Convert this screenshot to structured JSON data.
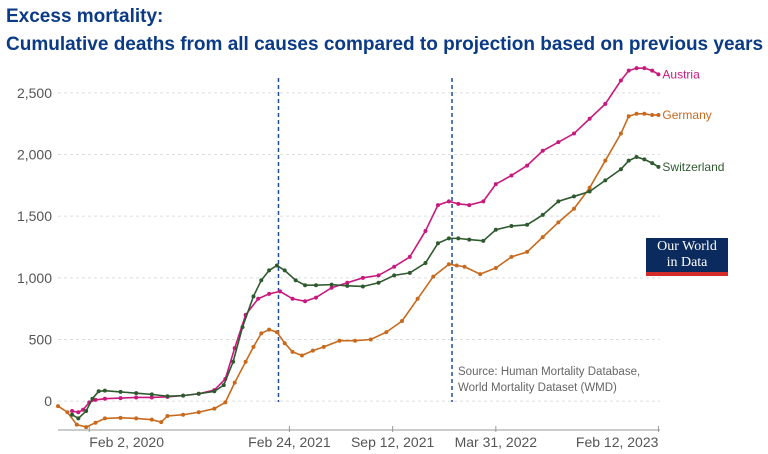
{
  "header": {
    "title": "Excess mortality:",
    "subtitle": "Cumulative deaths from all causes compared to projection based on previous years"
  },
  "source": {
    "line1": "Source: Human Mortality Database,",
    "line2": "World Mortality Dataset (WMD)"
  },
  "logo": {
    "line1": "Our World",
    "line2": "in Data"
  },
  "chart_data": {
    "type": "line",
    "title": "Excess mortality: Cumulative deaths from all causes compared to projection based on previous years",
    "xlabel": "",
    "ylabel": "",
    "x_ticks": [
      {
        "label": "Feb 2, 2020",
        "t": 2.0
      },
      {
        "label": "Feb 24, 2021",
        "t": 14.8
      },
      {
        "label": "Sep 12, 2021",
        "t": 21.4
      },
      {
        "label": "Mar 31, 2022",
        "t": 28.0
      },
      {
        "label": "Feb 12, 2023",
        "t": 38.4
      }
    ],
    "xlim": [
      0.0,
      38.5
    ],
    "ylim": [
      -250,
      2750
    ],
    "y_ticks": [
      0,
      500,
      1000,
      1500,
      2000,
      2500
    ],
    "y_tick_labels": [
      "0",
      "500",
      "1,000",
      "1,500",
      "2,000",
      "2,500"
    ],
    "vertical_markers": [
      {
        "t": 14.1
      },
      {
        "t": 25.2
      }
    ],
    "grid": true,
    "series": [
      {
        "name": "Austria",
        "color": "#c8197e",
        "x": [
          0.9,
          1.3,
          1.6,
          2.0,
          2.4,
          3.0,
          4.0,
          5.0,
          6.0,
          7.0,
          8.0,
          9.0,
          10.0,
          10.7,
          11.3,
          12.0,
          12.8,
          13.5,
          14.2,
          15.0,
          15.8,
          16.5,
          17.5,
          18.5,
          19.5,
          20.5,
          21.5,
          22.5,
          23.5,
          24.3,
          25.0,
          25.6,
          26.3,
          27.2,
          28.0,
          29.0,
          30.0,
          31.0,
          32.0,
          33.0,
          34.0,
          35.0,
          36.0,
          36.5,
          37.0,
          37.5,
          38.0,
          38.4
        ],
        "y": [
          -80,
          -90,
          -70,
          -10,
          10,
          20,
          25,
          30,
          30,
          35,
          45,
          60,
          90,
          180,
          430,
          700,
          830,
          870,
          890,
          830,
          810,
          840,
          920,
          960,
          1000,
          1020,
          1090,
          1170,
          1380,
          1590,
          1620,
          1600,
          1590,
          1620,
          1760,
          1830,
          1910,
          2030,
          2100,
          2170,
          2290,
          2410,
          2600,
          2680,
          2700,
          2700,
          2680,
          2650
        ]
      },
      {
        "name": "Germany",
        "color": "#c86a1e",
        "x": [
          0.0,
          0.6,
          1.2,
          1.8,
          2.4,
          3.0,
          4.0,
          5.0,
          6.0,
          6.6,
          7.0,
          8.0,
          9.0,
          10.0,
          10.7,
          11.3,
          12.0,
          12.5,
          13.0,
          13.5,
          14.0,
          14.5,
          15.0,
          15.6,
          16.3,
          17.0,
          18.0,
          19.0,
          20.0,
          21.0,
          22.0,
          23.0,
          24.0,
          25.0,
          25.5,
          26.0,
          27.0,
          28.0,
          29.0,
          30.0,
          31.0,
          32.0,
          33.0,
          34.0,
          35.0,
          36.0,
          36.5,
          37.0,
          37.5,
          38.0,
          38.4
        ],
        "y": [
          -40,
          -90,
          -190,
          -210,
          -175,
          -140,
          -135,
          -140,
          -150,
          -170,
          -120,
          -110,
          -90,
          -60,
          -10,
          150,
          320,
          440,
          550,
          580,
          560,
          470,
          400,
          370,
          410,
          440,
          490,
          490,
          500,
          560,
          650,
          830,
          1010,
          1110,
          1100,
          1090,
          1030,
          1080,
          1170,
          1210,
          1330,
          1450,
          1560,
          1730,
          1950,
          2170,
          2310,
          2330,
          2330,
          2320,
          2320
        ]
      },
      {
        "name": "Switzerland",
        "color": "#2f5a2f",
        "x": [
          0.9,
          1.3,
          1.8,
          2.2,
          2.6,
          3.0,
          4.0,
          5.0,
          6.0,
          7.0,
          8.0,
          9.0,
          10.0,
          10.6,
          11.2,
          11.8,
          12.5,
          13.0,
          13.5,
          14.0,
          14.5,
          15.2,
          15.8,
          16.5,
          17.5,
          18.5,
          19.5,
          20.5,
          21.5,
          22.5,
          23.5,
          24.3,
          25.0,
          25.6,
          26.3,
          27.2,
          28.0,
          29.0,
          30.0,
          31.0,
          32.0,
          33.0,
          34.0,
          35.0,
          36.0,
          36.5,
          37.0,
          37.5,
          38.0,
          38.4
        ],
        "y": [
          -110,
          -140,
          -80,
          20,
          80,
          85,
          75,
          65,
          55,
          40,
          45,
          60,
          80,
          130,
          320,
          600,
          850,
          980,
          1060,
          1100,
          1060,
          980,
          940,
          940,
          945,
          935,
          930,
          960,
          1020,
          1040,
          1120,
          1280,
          1320,
          1320,
          1310,
          1300,
          1390,
          1420,
          1430,
          1510,
          1620,
          1660,
          1700,
          1790,
          1880,
          1950,
          1980,
          1960,
          1930,
          1900
        ]
      }
    ]
  }
}
